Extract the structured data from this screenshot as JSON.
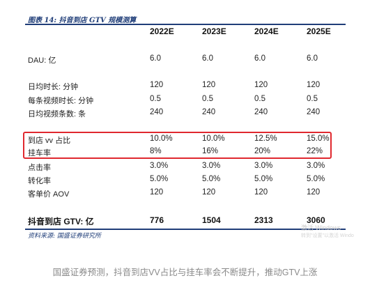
{
  "figure_title": "图表 14:  抖音到店 GTV 规模测算",
  "columns": [
    "2022E",
    "2023E",
    "2024E",
    "2025E"
  ],
  "rows": [
    {
      "label": "DAU: 亿",
      "values": [
        "6.0",
        "6.0",
        "6.0",
        "6.0"
      ]
    },
    {
      "label": "日均时长: 分钟",
      "values": [
        "120",
        "120",
        "120",
        "120"
      ]
    },
    {
      "label": "每条视频时长: 分钟",
      "values": [
        "0.5",
        "0.5",
        "0.5",
        "0.5"
      ]
    },
    {
      "label": "日均视频条数: 条",
      "values": [
        "240",
        "240",
        "240",
        "240"
      ]
    },
    {
      "label": "到店 vv 占比",
      "values": [
        "10.0%",
        "10.0%",
        "12.5%",
        "15.0%"
      ]
    },
    {
      "label": "挂车率",
      "values": [
        "8%",
        "16%",
        "20%",
        "22%"
      ]
    },
    {
      "label": "点击率",
      "values": [
        "3.0%",
        "3.0%",
        "3.0%",
        "3.0%"
      ]
    },
    {
      "label": "转化率",
      "values": [
        "5.0%",
        "5.0%",
        "5.0%",
        "5.0%"
      ]
    },
    {
      "label": "客单价 AOV",
      "values": [
        "120",
        "120",
        "120",
        "120"
      ]
    },
    {
      "label": "抖音到店 GTV: 亿",
      "values": [
        "776",
        "1504",
        "2313",
        "3060"
      ]
    }
  ],
  "source": "资料来源:  国盛证券研究所",
  "watermark": {
    "line1": "激活 Windows",
    "line2": "转到\"设置\"以激活 Windo"
  },
  "caption": "国盛证券预测，抖音到店VV占比与挂车率会不断提升，推动GTV上涨",
  "colors": {
    "accent": "#1f3d78",
    "highlight": "#e0282e"
  }
}
